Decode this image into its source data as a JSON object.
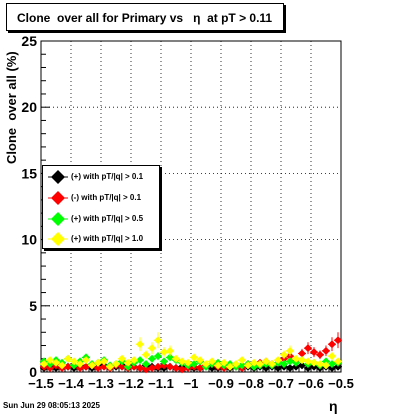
{
  "title": "Clone  over all for Primary vs   η  at pT > 0.11",
  "timestamp": "Sun Jun 29 08:05:13 2025",
  "chart_data": {
    "type": "scatter",
    "title": "Clone  over all for Primary vs   η  at pT > 0.11",
    "xlabel": "η",
    "ylabel": "Clone  over all (%)",
    "xlim": [
      -1.5,
      -0.5
    ],
    "ylim": [
      0,
      25
    ],
    "x_ticks": [
      -1.5,
      -1.4,
      -1.3,
      -1.2,
      -1.1,
      -1.0,
      -0.9,
      -0.8,
      -0.7,
      -0.6,
      -0.5
    ],
    "x_tick_labels": [
      "−1.5",
      "−1.4",
      "−1.3",
      "−1.2",
      "−1.1",
      "−1",
      "−0.9",
      "−0.8",
      "−0.7",
      "−0.6",
      "−0.5"
    ],
    "y_ticks": [
      0,
      5,
      10,
      15,
      20,
      25
    ],
    "y_tick_labels": [
      "0",
      "5",
      "10",
      "15",
      "20",
      "25"
    ],
    "grid": true,
    "legend_position": "left-middle",
    "series": [
      {
        "name": "(+) with pT/|q| > 0.1",
        "color": "#000000",
        "x": [
          -1.49,
          -1.47,
          -1.45,
          -1.43,
          -1.41,
          -1.39,
          -1.37,
          -1.35,
          -1.33,
          -1.31,
          -1.29,
          -1.27,
          -1.25,
          -1.23,
          -1.21,
          -1.19,
          -1.17,
          -1.15,
          -1.13,
          -1.11,
          -1.09,
          -1.07,
          -1.05,
          -1.03,
          -1.01,
          -0.99,
          -0.97,
          -0.95,
          -0.93,
          -0.91,
          -0.89,
          -0.87,
          -0.85,
          -0.83,
          -0.81,
          -0.79,
          -0.77,
          -0.75,
          -0.73,
          -0.71,
          -0.69,
          -0.67,
          -0.65,
          -0.63,
          -0.61,
          -0.59,
          -0.57,
          -0.55,
          -0.53,
          -0.51
        ],
        "y": [
          0.3,
          0.4,
          0.3,
          0.5,
          0.4,
          0.3,
          0.5,
          0.4,
          0.3,
          0.4,
          0.5,
          0.3,
          0.4,
          0.5,
          0.3,
          0.4,
          0.3,
          0.5,
          0.4,
          0.3,
          0.3,
          0.4,
          0.3,
          0.4,
          0.5,
          0.3,
          0.3,
          0.4,
          0.3,
          0.3,
          0.4,
          0.3,
          0.4,
          0.3,
          0.4,
          0.3,
          0.4,
          0.3,
          0.4,
          0.3,
          0.4,
          0.3,
          0.4,
          0.5,
          0.3,
          0.4,
          0.3,
          0.4,
          0.3,
          0.4
        ]
      },
      {
        "name": "(-) with pT/|q| > 0.1",
        "color": "#ff0000",
        "x": [
          -1.49,
          -1.47,
          -1.45,
          -1.43,
          -1.41,
          -1.39,
          -1.37,
          -1.35,
          -1.33,
          -1.31,
          -1.29,
          -1.27,
          -1.25,
          -1.23,
          -1.21,
          -1.19,
          -1.17,
          -1.15,
          -1.13,
          -1.11,
          -1.09,
          -1.07,
          -1.05,
          -1.03,
          -1.01,
          -0.99,
          -0.97,
          -0.95,
          -0.93,
          -0.91,
          -0.89,
          -0.87,
          -0.85,
          -0.83,
          -0.81,
          -0.79,
          -0.77,
          -0.75,
          -0.73,
          -0.71,
          -0.69,
          -0.67,
          -0.65,
          -0.63,
          -0.61,
          -0.59,
          -0.57,
          -0.55,
          -0.53,
          -0.51
        ],
        "y": [
          0.4,
          0.3,
          0.5,
          0.3,
          0.4,
          0.5,
          0.3,
          0.4,
          0.5,
          0.3,
          0.4,
          0.3,
          0.5,
          0.4,
          0.3,
          0.4,
          0.3,
          0.2,
          0.3,
          0.4,
          0.5,
          0.4,
          0.3,
          0.2,
          0.3,
          0.4,
          0.3,
          0.5,
          0.6,
          0.4,
          0.3,
          0.5,
          0.4,
          0.3,
          0.6,
          0.5,
          0.7,
          0.8,
          0.6,
          0.7,
          1.0,
          1.2,
          0.9,
          1.4,
          1.8,
          1.5,
          1.3,
          1.6,
          2.1,
          2.4
        ]
      },
      {
        "name": "(+) with pT/|q| > 0.5",
        "color": "#00ff00",
        "x": [
          -1.49,
          -1.47,
          -1.45,
          -1.43,
          -1.41,
          -1.39,
          -1.37,
          -1.35,
          -1.33,
          -1.31,
          -1.29,
          -1.27,
          -1.25,
          -1.23,
          -1.21,
          -1.19,
          -1.17,
          -1.15,
          -1.13,
          -1.11,
          -1.09,
          -1.07,
          -1.05,
          -1.03,
          -1.01,
          -0.99,
          -0.97,
          -0.95,
          -0.93,
          -0.91,
          -0.89,
          -0.87,
          -0.85,
          -0.83,
          -0.81,
          -0.79,
          -0.77,
          -0.75,
          -0.73,
          -0.71,
          -0.69,
          -0.67,
          -0.65,
          -0.63,
          -0.61,
          -0.59,
          -0.57,
          -0.55,
          -0.53,
          -0.51
        ],
        "y": [
          0.8,
          0.6,
          0.9,
          0.7,
          1.0,
          0.5,
          0.8,
          1.1,
          0.6,
          0.7,
          0.9,
          0.5,
          0.6,
          0.8,
          0.4,
          0.7,
          0.9,
          0.6,
          1.0,
          1.2,
          0.8,
          1.1,
          0.9,
          0.7,
          0.5,
          0.6,
          0.8,
          0.4,
          0.6,
          0.7,
          0.5,
          0.6,
          0.4,
          0.5,
          0.6,
          0.4,
          0.5,
          0.6,
          0.5,
          0.7,
          0.6,
          0.8,
          0.7,
          0.9,
          0.6,
          0.7,
          0.5,
          0.8,
          0.6,
          0.7
        ]
      },
      {
        "name": "(+) with pT/|q| > 1.0",
        "color": "#ffff00",
        "x": [
          -1.49,
          -1.47,
          -1.45,
          -1.43,
          -1.41,
          -1.39,
          -1.37,
          -1.35,
          -1.33,
          -1.31,
          -1.29,
          -1.27,
          -1.25,
          -1.23,
          -1.21,
          -1.19,
          -1.17,
          -1.15,
          -1.13,
          -1.11,
          -1.09,
          -1.07,
          -1.05,
          -1.03,
          -1.01,
          -0.99,
          -0.97,
          -0.95,
          -0.93,
          -0.91,
          -0.89,
          -0.87,
          -0.85,
          -0.83,
          -0.81,
          -0.79,
          -0.77,
          -0.75,
          -0.73,
          -0.71,
          -0.69,
          -0.67,
          -0.65,
          -0.63,
          -0.61,
          -0.59,
          -0.57,
          -0.55,
          -0.53,
          -0.51
        ],
        "y": [
          0.6,
          0.9,
          0.7,
          0.5,
          1.0,
          0.8,
          0.6,
          0.9,
          0.5,
          0.7,
          0.8,
          0.4,
          0.6,
          1.0,
          0.7,
          0.9,
          2.1,
          1.3,
          1.8,
          2.4,
          1.5,
          1.6,
          1.0,
          0.8,
          0.7,
          1.1,
          0.9,
          0.6,
          0.8,
          0.5,
          0.7,
          0.4,
          0.6,
          0.9,
          0.5,
          0.7,
          0.6,
          0.8,
          0.6,
          0.9,
          1.3,
          1.6,
          1.0,
          0.9,
          0.8,
          0.7,
          0.6,
          0.5,
          1.2,
          0.8
        ]
      }
    ]
  }
}
